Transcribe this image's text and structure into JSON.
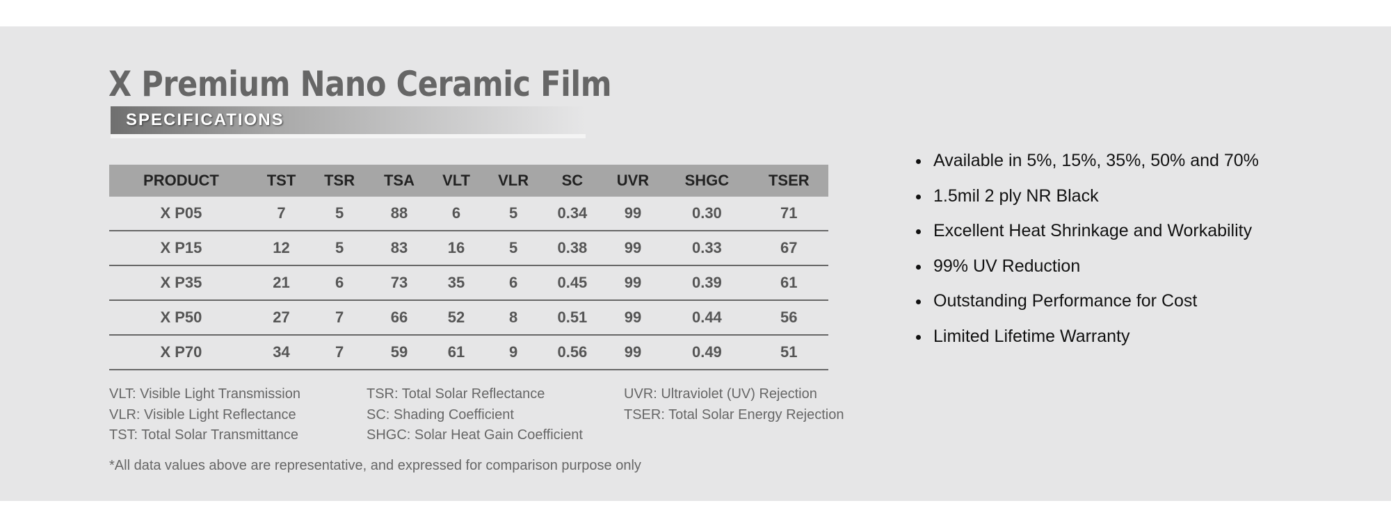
{
  "header": {
    "title": "X Premium Nano Ceramic Film",
    "subtitle": "SPECIFICATIONS"
  },
  "table": {
    "columns": [
      "PRODUCT",
      "TST",
      "TSR",
      "TSA",
      "VLT",
      "VLR",
      "SC",
      "UVR",
      "SHGC",
      "TSER"
    ],
    "rows": [
      [
        "X P05",
        "7",
        "5",
        "88",
        "6",
        "5",
        "0.34",
        "99",
        "0.30",
        "71"
      ],
      [
        "X P15",
        "12",
        "5",
        "83",
        "16",
        "5",
        "0.38",
        "99",
        "0.33",
        "67"
      ],
      [
        "X P35",
        "21",
        "6",
        "73",
        "35",
        "6",
        "0.45",
        "99",
        "0.39",
        "61"
      ],
      [
        "X P50",
        "27",
        "7",
        "66",
        "52",
        "8",
        "0.51",
        "99",
        "0.44",
        "56"
      ],
      [
        "X P70",
        "34",
        "7",
        "59",
        "61",
        "9",
        "0.56",
        "99",
        "0.49",
        "51"
      ]
    ]
  },
  "legend": [
    [
      "VLT: Visible Light Transmission",
      "VLR: Visible Light Reflectance",
      "TST: Total Solar Transmittance"
    ],
    [
      "TSR: Total Solar Reflectance",
      "SC: Shading Coefficient",
      "SHGC: Solar Heat Gain Coefficient"
    ],
    [
      "UVR: Ultraviolet (UV) Rejection",
      "TSER: Total Solar Energy Rejection"
    ]
  ],
  "note": "*All data values above are representative, and expressed for comparison purpose only",
  "features": [
    "Available in 5%, 15%, 35%, 50% and 70%",
    "1.5mil 2 ply NR Black",
    "Excellent Heat Shrinkage and Workability",
    "99% UV Reduction",
    "Outstanding Performance for Cost",
    "Limited Lifetime Warranty"
  ]
}
